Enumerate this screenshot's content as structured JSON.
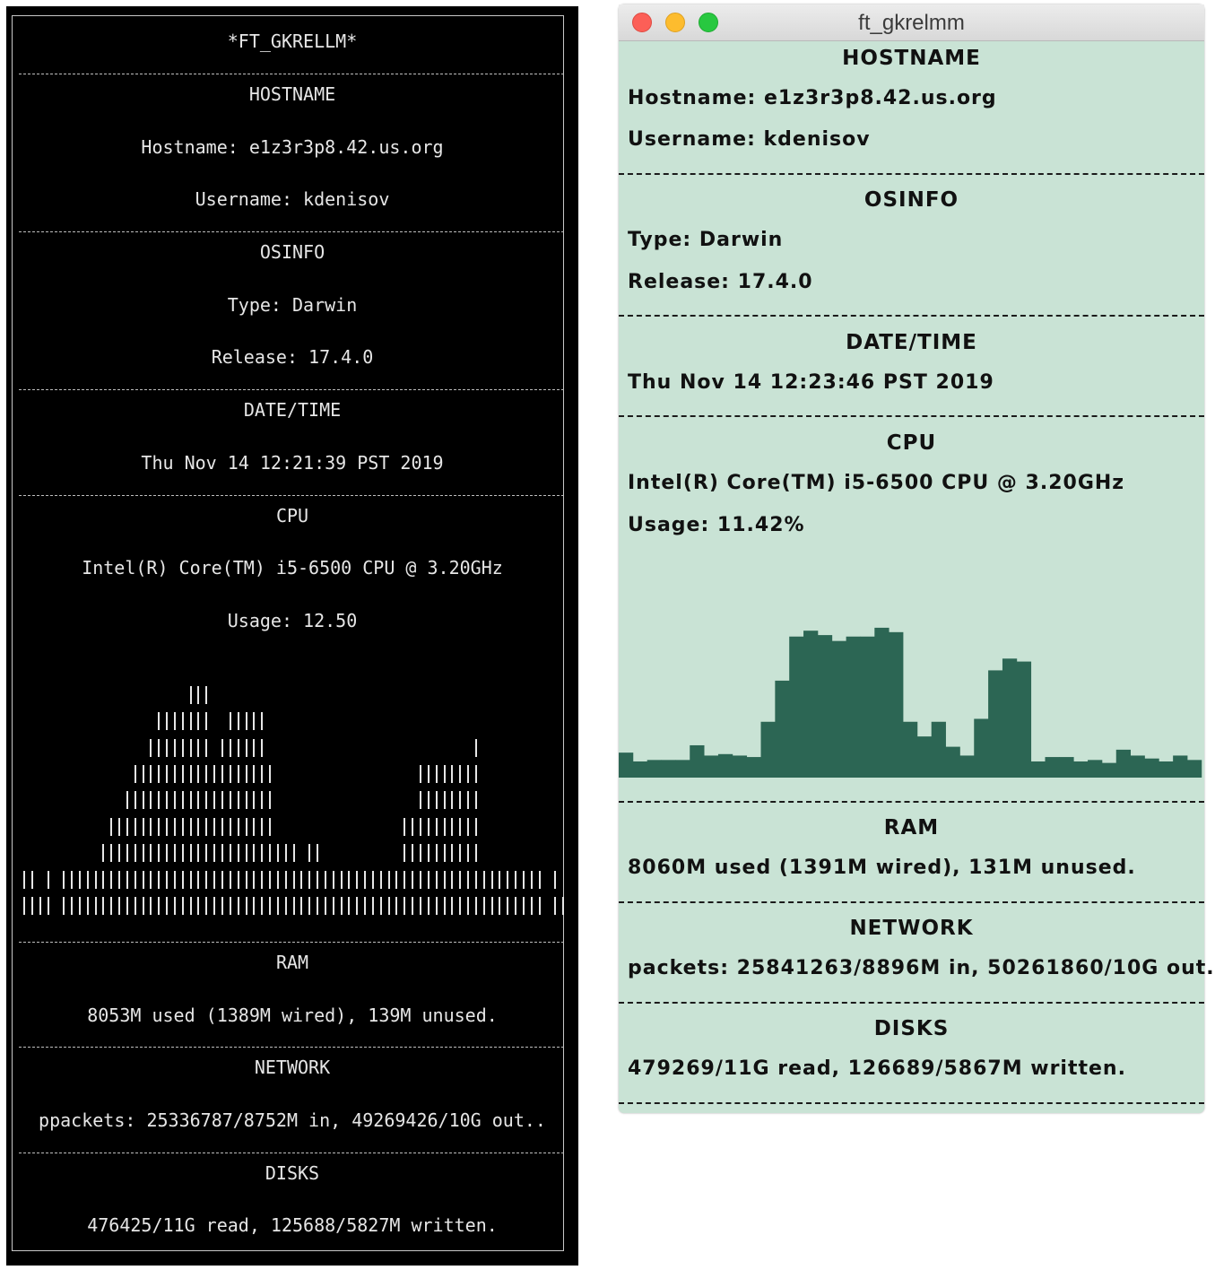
{
  "terminal": {
    "title": "*FT_GKRELLM*",
    "hostname": {
      "header": "HOSTNAME",
      "host": "Hostname: e1z3r3p8.42.us.org",
      "user": "Username: kdenisov"
    },
    "osinfo": {
      "header": "OSINFO",
      "type": "Type: Darwin",
      "release": "Release: 17.4.0"
    },
    "datetime": {
      "header": "DATE/TIME",
      "value": "Thu Nov 14 12:21:39 PST 2019"
    },
    "cpu": {
      "header": "CPU",
      "model": "Intel(R) Core(TM) i5-6500 CPU @ 3.20GHz",
      "usage": "Usage: 12.50",
      "graph_levels": [
        2,
        2,
        1,
        2,
        0,
        2,
        2,
        2,
        2,
        2,
        3,
        4,
        4,
        5,
        6,
        6,
        7,
        8,
        8,
        8,
        8,
        9,
        9,
        9,
        6,
        7,
        8,
        8,
        8,
        8,
        8,
        6,
        3,
        3,
        3,
        2,
        3,
        3,
        2,
        2,
        2,
        2,
        2,
        2,
        2,
        2,
        2,
        2,
        4,
        4,
        6,
        6,
        6,
        6,
        6,
        6,
        6,
        7,
        2,
        2,
        2,
        2,
        2,
        2,
        2,
        2,
        0,
        2,
        1
      ],
      "graph_max": 10
    },
    "ram": {
      "header": "RAM",
      "value": "8053M used (1389M wired), 139M unused."
    },
    "network": {
      "header": "NETWORK",
      "value": "ppackets: 25336787/8752M in, 49269426/10G out.."
    },
    "disks": {
      "header": "DISKS",
      "value": "476425/11G read, 125688/5827M written."
    }
  },
  "window": {
    "title": "ft_gkrelmm",
    "hostname": {
      "header": "HOSTNAME",
      "host": "Hostname: e1z3r3p8.42.us.org",
      "user": "Username: kdenisov"
    },
    "osinfo": {
      "header": "OSINFO",
      "type": "Type: Darwin",
      "release": "Release: 17.4.0"
    },
    "datetime": {
      "header": "DATE/TIME",
      "value": "Thu Nov 14 12:23:46 PST 2019"
    },
    "cpu": {
      "header": "CPU",
      "model": "Intel(R) Core(TM) i5-6500 CPU @ 3.20GHz",
      "usage": "Usage: 11.42%",
      "history_percent": [
        17,
        11,
        12,
        12,
        12,
        22,
        15,
        16,
        15,
        14,
        38,
        66,
        96,
        100,
        97,
        93,
        96,
        96,
        102,
        99,
        38,
        28,
        38,
        21,
        15,
        40,
        73,
        81,
        79,
        11,
        14,
        14,
        11,
        12,
        10,
        19,
        15,
        13,
        11,
        15,
        12
      ],
      "history_max": 105,
      "bar_color": "#2c6654"
    },
    "ram": {
      "header": "RAM",
      "value": "8060M used (1391M wired), 131M unused."
    },
    "network": {
      "header": "NETWORK",
      "value": "packets: 25841263/8896M in, 50261860/10G out."
    },
    "disks": {
      "header": "DISKS",
      "value": "479269/11G read, 126689/5867M written."
    },
    "background_color": "#c9e3d5"
  }
}
